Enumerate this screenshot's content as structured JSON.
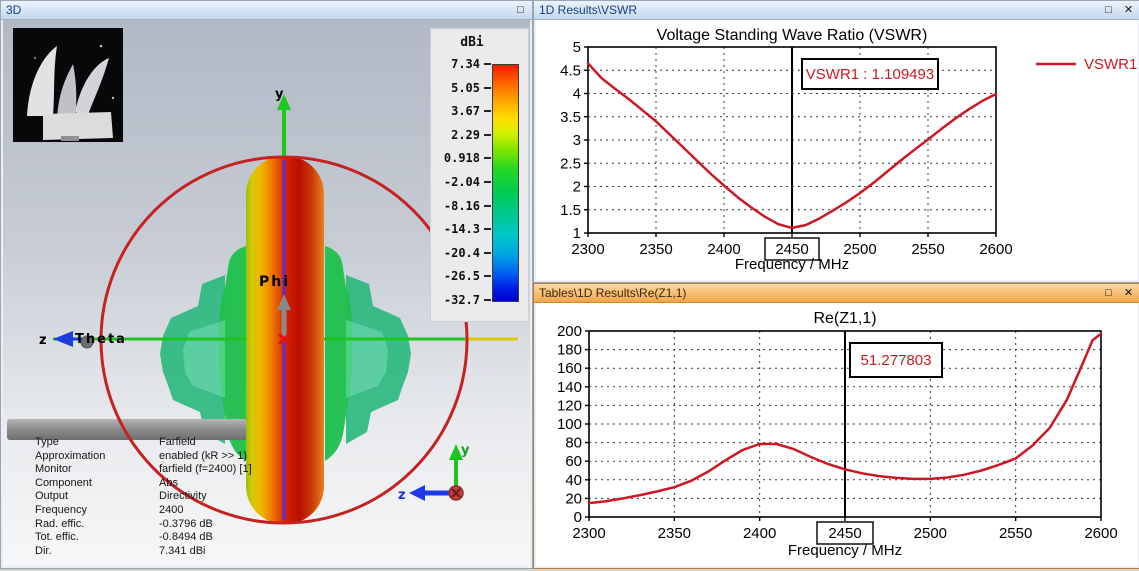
{
  "chrome": {
    "maximize_glyph": "□",
    "close_glyph": "✕"
  },
  "window_3d": {
    "title": "3D",
    "colorbar": {
      "title": "dBi",
      "ticks": [
        "7.34",
        "5.05",
        "3.67",
        "2.29",
        "0.918",
        "-2.04",
        "-8.16",
        "-14.3",
        "-20.4",
        "-26.5",
        "-32.7"
      ]
    },
    "labels": {
      "y_axis": "y",
      "z_axis": "z",
      "theta": "Theta",
      "phi": "Phi",
      "triad_y": "y",
      "triad_z": "z"
    },
    "info": [
      {
        "label": "Type",
        "value": "Farfield"
      },
      {
        "label": "Approximation",
        "value": "enabled (kR >> 1)"
      },
      {
        "label": "Monitor",
        "value": "farfield (f=2400) [1]"
      },
      {
        "label": "Component",
        "value": "Abs"
      },
      {
        "label": "Output",
        "value": "Directivity"
      },
      {
        "label": "Frequency",
        "value": "2400"
      },
      {
        "label": "Rad. effic.",
        "value": "-0.3796 dB"
      },
      {
        "label": "Tot. effic.",
        "value": "-0.8494 dB"
      },
      {
        "label": "Dir.",
        "value": "7.341 dBi"
      }
    ]
  },
  "window_vswr": {
    "title": "1D Results\\VSWR"
  },
  "window_rez": {
    "title": "Tables\\1D Results\\Re(Z1,1)"
  },
  "accent_colors": {
    "curve_red": "#cc1822",
    "marker_black": "#000000"
  },
  "chart_data": [
    {
      "type": "line",
      "title": "Voltage Standing Wave Ratio (VSWR)",
      "xlabel": "Frequency / MHz",
      "ylabel": "",
      "xlim": [
        2300,
        2600
      ],
      "ylim": [
        1,
        5
      ],
      "xticks": [
        2300,
        2350,
        2400,
        2450,
        2500,
        2550,
        2600
      ],
      "yticks": [
        1,
        1.5,
        2,
        2.5,
        3,
        3.5,
        4,
        4.5,
        5
      ],
      "grid": true,
      "legend_position": "right",
      "marker": {
        "x": 2450,
        "tick_label": "2450",
        "annotation": "VSWR1 : 1.109493",
        "value": 1.109493
      },
      "series": [
        {
          "name": "VSWR1",
          "color": "#cc1822",
          "x": [
            2300,
            2310,
            2320,
            2330,
            2340,
            2350,
            2360,
            2370,
            2380,
            2390,
            2400,
            2410,
            2420,
            2430,
            2440,
            2450,
            2460,
            2470,
            2480,
            2490,
            2500,
            2510,
            2520,
            2530,
            2540,
            2550,
            2560,
            2570,
            2580,
            2590,
            2600
          ],
          "y": [
            4.65,
            4.33,
            4.1,
            3.88,
            3.64,
            3.4,
            3.12,
            2.84,
            2.56,
            2.28,
            2.02,
            1.77,
            1.55,
            1.35,
            1.19,
            1.11,
            1.17,
            1.31,
            1.48,
            1.66,
            1.86,
            2.08,
            2.32,
            2.56,
            2.79,
            3.01,
            3.24,
            3.46,
            3.66,
            3.84,
            3.99
          ]
        }
      ]
    },
    {
      "type": "line",
      "title": "Re(Z1,1)",
      "xlabel": "Frequency / MHz",
      "ylabel": "",
      "xlim": [
        2300,
        2600
      ],
      "ylim": [
        0,
        200
      ],
      "xticks": [
        2300,
        2350,
        2400,
        2450,
        2500,
        2550,
        2600
      ],
      "yticks": [
        0,
        20,
        40,
        60,
        80,
        100,
        120,
        140,
        160,
        180,
        200
      ],
      "grid": true,
      "legend_position": "none",
      "marker": {
        "x": 2450,
        "tick_label": "2450",
        "annotation": "51.277803",
        "value": 51.277803
      },
      "series": [
        {
          "name": "Re(Z1,1)",
          "color": "#cc1822",
          "x": [
            2300,
            2310,
            2320,
            2330,
            2340,
            2350,
            2360,
            2370,
            2380,
            2390,
            2400,
            2410,
            2420,
            2430,
            2440,
            2450,
            2460,
            2470,
            2480,
            2490,
            2500,
            2510,
            2520,
            2530,
            2540,
            2550,
            2560,
            2570,
            2580,
            2590,
            2595,
            2600
          ],
          "y": [
            15,
            17,
            20,
            23.5,
            27.5,
            32,
            39,
            49,
            61,
            72,
            78.5,
            78.5,
            73,
            64.5,
            57,
            51.3,
            47,
            44,
            42,
            41,
            41,
            42.5,
            45.5,
            50,
            56,
            63,
            77,
            96,
            126,
            168,
            190,
            197
          ]
        }
      ]
    }
  ]
}
